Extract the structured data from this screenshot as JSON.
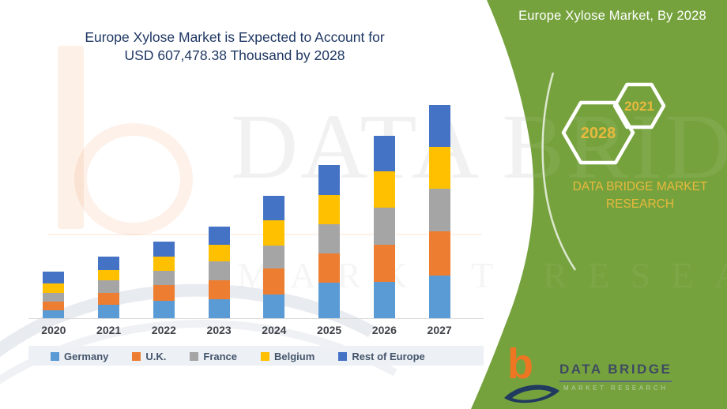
{
  "header": {
    "title_line1": "Europe Xylose Market is Expected to Account for",
    "title_line2": "USD 607,478.38 Thousand by 2028"
  },
  "green_panel": {
    "title": "Europe Xylose Market, By 2028",
    "hexagons": [
      "2028",
      "2021"
    ],
    "caption": "DATA BRIDGE MARKET RESEARCH",
    "logo": {
      "mark": "b",
      "name": "DATA BRIDGE",
      "subtitle": "MARKET RESEARCH"
    }
  },
  "watermarks": {
    "line1": "DATA BRIDGE",
    "line2": "MARKET RESEARCH"
  },
  "colors": {
    "green": "#76A23E",
    "gold": "#E8B93C",
    "navy": "#1F3864",
    "axis_label": "#3F4249",
    "legend_text": "#44546A",
    "logo_orange": "#EE7623",
    "logo_navy": "#203A60"
  },
  "chart_data": {
    "type": "bar",
    "stacked": true,
    "title": "Europe Xylose Market is Expected to Account for USD 607,478.38 Thousand by 2028",
    "categories": [
      "2020",
      "2021",
      "2022",
      "2023",
      "2024",
      "2025",
      "2026",
      "2027"
    ],
    "series": [
      {
        "name": "Germany",
        "color": "#5B9BD5",
        "values": [
          10,
          17,
          22,
          24,
          30,
          45,
          46,
          54
        ]
      },
      {
        "name": "U.K.",
        "color": "#ED7D31",
        "values": [
          11,
          15,
          20,
          24,
          33,
          37,
          47,
          56
        ]
      },
      {
        "name": "France",
        "color": "#A5A5A5",
        "values": [
          11,
          16,
          18,
          24,
          29,
          37,
          47,
          54
        ]
      },
      {
        "name": "Belgium",
        "color": "#FFC000",
        "values": [
          12,
          13,
          18,
          21,
          32,
          37,
          46,
          53
        ]
      },
      {
        "name": "Rest of Europe",
        "color": "#4472C4",
        "values": [
          15,
          17,
          19,
          23,
          31,
          38,
          45,
          53
        ]
      }
    ],
    "units": "relative bar-segment heights (no numeric value axis is displayed)",
    "xlabel": "",
    "ylabel": "",
    "y_axis_visible": false,
    "grid": false,
    "legend_position": "bottom",
    "annotation": "Headline states the market is expected to account for USD 607,478.38 Thousand by 2028"
  }
}
